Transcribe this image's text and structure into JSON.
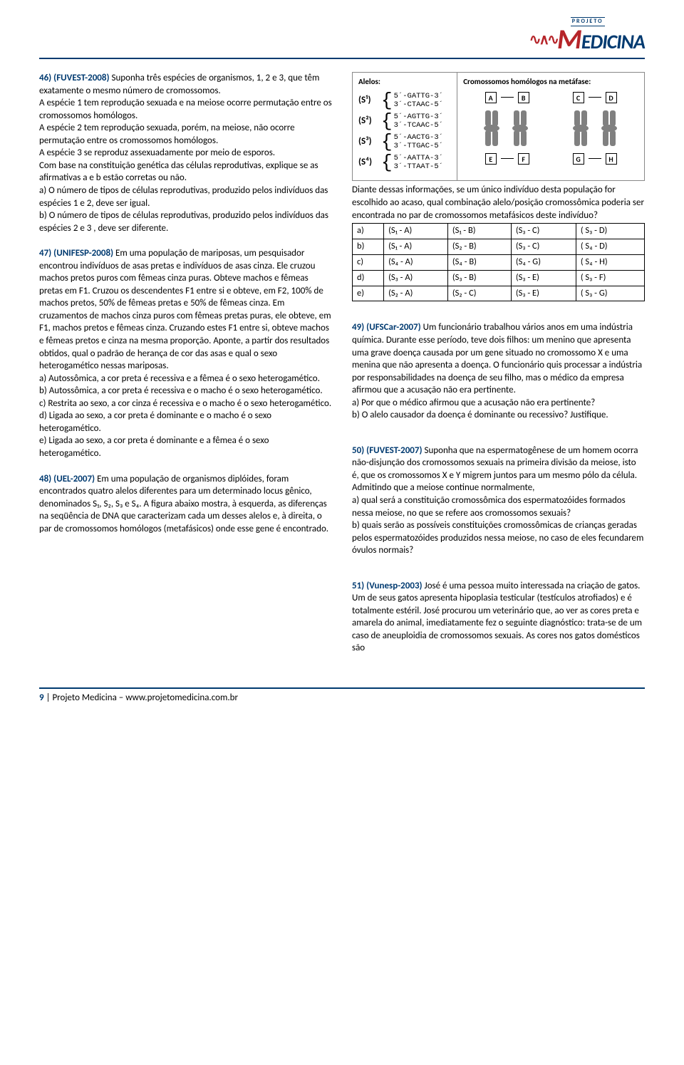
{
  "logo": {
    "projeto": "PROJETO",
    "text1": "M",
    "text2": "EDICINA"
  },
  "q46": {
    "num": "46) (FUVEST-2008)",
    "body": "Suponha três espécies de organismos, 1, 2 e 3, que têm exatamente o mesmo número de cromossomos.",
    "p2": "A espécie 1 tem reprodução sexuada e na meiose ocorre permutação entre os cromossomos homólogos.",
    "p3": "A espécie 2 tem reprodução sexuada, porém, na meiose, não ocorre permutação entre os cromossomos homólogos.",
    "p4": "A espécie 3 se reproduz assexuadamente por meio de esporos.",
    "p5": "Com base na constituição genética das células reprodutivas, explique se as afirmativas a e b estão corretas ou não.",
    "a": "a) O número de tipos de células reprodutivas, produzido pelos indivíduos das espécies 1 e 2, deve ser igual.",
    "b": "b) O número de tipos de células reprodutivas, produzido pelos indivíduos das espécies 2 e 3 , deve ser diferente."
  },
  "q47": {
    "num": "47) (UNIFESP-2008)",
    "body": "Em uma população de mariposas, um pesquisador encontrou indivíduos de asas pretas e indivíduos de asas cinza. Ele cruzou machos pretos puros com fêmeas cinza puras. Obteve machos e fêmeas pretas em F1. Cruzou os descendentes F1 entre si e obteve, em F2, 100% de machos pretos, 50% de fêmeas pretas e 50% de fêmeas cinza. Em cruzamentos de machos cinza puros com fêmeas pretas puras, ele obteve, em F1, machos pretos e fêmeas cinza. Cruzando estes F1 entre si, obteve machos e fêmeas pretos e cinza na mesma proporção. Aponte, a partir dos resultados obtidos, qual o padrão de herança de cor das asas e qual o sexo heterogamético nessas mariposas.",
    "a": "a) Autossômica, a cor preta é recessiva e a fêmea é o sexo heterogamético.",
    "b": "b) Autossômica, a cor preta é recessiva e o macho é o sexo heterogamético.",
    "c": "c) Restrita ao sexo, a cor cinza é recessiva e o macho é o sexo heterogamético.",
    "d": "d) Ligada ao sexo, a cor preta é dominante e o macho é o sexo heterogamético.",
    "e": "e) Ligada ao sexo, a cor preta é dominante e a fêmea é o sexo heterogamético."
  },
  "q48": {
    "num": "48) (UEL-2007)",
    "body": "Em uma população de organismos diplóides, foram encontrados quatro alelos diferentes para um determinado locus gênico, denominados S₁, S₂, S₃ e S₄. A figura abaixo mostra, à esquerda, as diferenças na seqüência de DNA que caracterizam cada um desses alelos e, à direita, o par de cromossomos homólogos (metafásicos) onde esse gene é encontrado."
  },
  "figure": {
    "left_title": "Alelos:",
    "right_title": "Cromossomos homólogos na metáfase:",
    "alleles": [
      {
        "label": "(S¹)",
        "top": "5´-GATTG-3´",
        "bot": "3´-CTAAC-5´"
      },
      {
        "label": "(S²)",
        "top": "5´-AGTTG-3´",
        "bot": "3´-TCAAC-5´"
      },
      {
        "label": "(S³)",
        "top": "5´-AACTG-3´",
        "bot": "3´-TTGAC-5´"
      },
      {
        "label": "(S⁴)",
        "top": "5´-AATTA-3´",
        "bot": "3´-TTAAT-5´"
      }
    ],
    "letters_top": [
      "A",
      "B",
      "C",
      "D"
    ],
    "letters_bot": [
      "E",
      "F",
      "G",
      "H"
    ]
  },
  "q48_after": {
    "p1": "Diante dessas informações, se um único indivíduo desta população for escolhido ao acaso, qual combinação alelo/posição cromossômica poderia ser encontrada no par de cromossomos metafásicos deste indivíduo?"
  },
  "table48": {
    "rows": [
      [
        "a)",
        "(S₁ - A)",
        "(S₁ - B)",
        "(S₃ - C)",
        "( S₃ - D)"
      ],
      [
        "b)",
        "(S₁ - A)",
        "(S₂ - B)",
        "(S₃ - C)",
        "( S₄ - D)"
      ],
      [
        "c)",
        "(S₄ - A)",
        "(S₄ - B)",
        "(S₄ - G)",
        "( S₄ - H)"
      ],
      [
        "d)",
        "(S₃ - A)",
        "(S₃ - B)",
        "(S₃ - E)",
        "( S₃ - F)"
      ],
      [
        "e)",
        "(S₂ - A)",
        "(S₂ - C)",
        "(S₃ - E)",
        "( S₃ - G)"
      ]
    ]
  },
  "q49": {
    "num": "49) (UFSCar-2007)",
    "body": "Um funcionário trabalhou vários anos em uma indústria química. Durante esse período, teve dois filhos: um menino que apresenta uma grave doença causada por um gene situado no cromossomo X e uma menina que não apresenta a doença. O funcionário quis processar a indústria por responsabilidades na doença de seu filho, mas o médico da empresa afirmou que a acusação não era pertinente.",
    "a": "a) Por que o médico afirmou que a acusação não era pertinente?",
    "b": "b) O alelo causador da doença é dominante ou recessivo? Justifique."
  },
  "q50": {
    "num": "50) (FUVEST-2007)",
    "body": "Suponha que na espermatogênese de um homem ocorra não-disjunção dos cromossomos sexuais na primeira divisão da meiose, isto é, que os cromossomos X e Y migrem juntos para um mesmo pólo da célula. Admitindo que a meiose continue normalmente,",
    "a": "a) qual será a constituição cromossômica dos espermatozóides formados nessa meiose, no que se refere aos cromossomos sexuais?",
    "b": "b) quais serão as possíveis constituições cromossômicas de crianças geradas pelos espermatozóides produzidos nessa meiose, no caso de eles fecundarem óvulos normais?"
  },
  "q51": {
    "num": "51) (Vunesp-2003)",
    "body": "José é uma pessoa muito interessada na criação de gatos. Um de seus gatos apresenta hipoplasia testicular (testículos atrofiados) e é totalmente estéril. José procurou um veterinário que, ao ver as cores preta e amarela do animal, imediatamente fez o seguinte diagnóstico: trata-se de um caso de aneuploidia de cromossomos sexuais. As cores nos gatos domésticos são"
  },
  "footer": {
    "page": "9",
    "sep": " | ",
    "site_label": "Projeto Medicina – ",
    "url": "www.projetomedicina.com.br"
  }
}
